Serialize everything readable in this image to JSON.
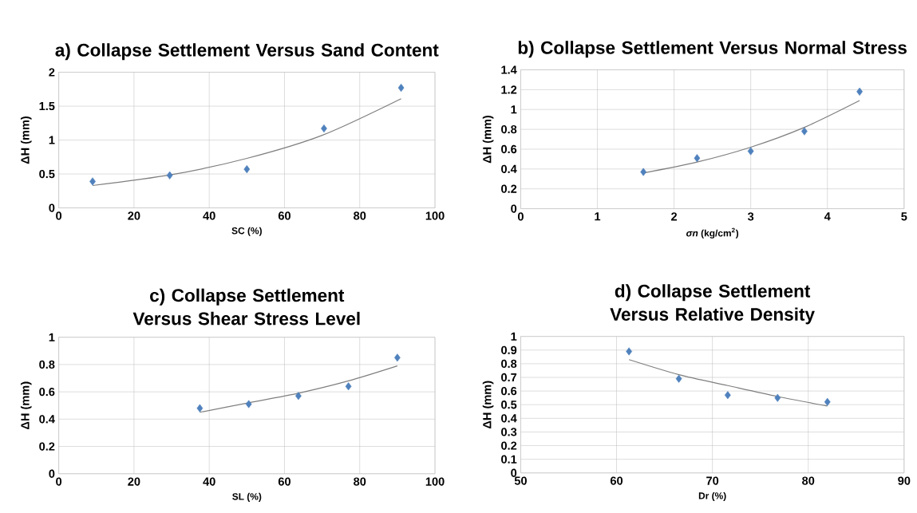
{
  "chart_data": [
    {
      "type": "scatter",
      "title": "a) Collapse Settlement Versus Sand Content",
      "xlabel": "SC (%)",
      "ylabel": "ΔH (mm)",
      "xlim": [
        0,
        100
      ],
      "xticks": [
        0,
        20,
        40,
        60,
        80,
        100
      ],
      "ylim": [
        0,
        2
      ],
      "yticks": [
        0,
        0.5,
        1,
        1.5,
        2
      ],
      "grid": true,
      "series": [
        {
          "color": "#4f81bd",
          "marker": "diamond",
          "x": [
            9,
            29.5,
            50,
            70.5,
            91
          ],
          "values": [
            0.39,
            0.48,
            0.57,
            1.17,
            1.77
          ]
        },
        {
          "type": "line",
          "color": "#7f7f7f",
          "marker": "none",
          "x": [
            9,
            30,
            50,
            70,
            91
          ],
          "values": [
            0.33,
            0.49,
            0.73,
            1.07,
            1.61
          ]
        }
      ]
    },
    {
      "type": "scatter",
      "title": "b) Collapse Settlement Versus Normal Stress",
      "xlabel": "*σn* (kg/cm$^{2}$)",
      "ylabel": "ΔH (mm)",
      "xlim": [
        0,
        5
      ],
      "xticks": [
        0,
        1,
        2,
        3,
        4,
        5
      ],
      "ylim": [
        0,
        1.4
      ],
      "yticks": [
        0,
        0.2,
        0.4,
        0.6,
        0.8,
        1,
        1.2,
        1.4
      ],
      "grid": true,
      "series": [
        {
          "color": "#4f81bd",
          "marker": "diamond",
          "x": [
            1.6,
            2.3,
            3.0,
            3.7,
            4.42
          ],
          "values": [
            0.37,
            0.51,
            0.58,
            0.78,
            1.18
          ]
        },
        {
          "type": "line",
          "color": "#7f7f7f",
          "marker": "none",
          "x": [
            1.6,
            2.3,
            3.0,
            3.7,
            4.42
          ],
          "values": [
            0.36,
            0.47,
            0.62,
            0.82,
            1.09
          ]
        }
      ]
    },
    {
      "type": "scatter",
      "title": "c) Collapse Settlement Versus Shear Stress Level",
      "xlabel": "SL (%)",
      "ylabel": "ΔH (mm)",
      "xlim": [
        0,
        100
      ],
      "xticks": [
        0,
        20,
        40,
        60,
        80,
        100
      ],
      "ylim": [
        0,
        1
      ],
      "yticks": [
        0,
        0.2,
        0.4,
        0.6,
        0.8,
        1
      ],
      "grid": true,
      "series": [
        {
          "color": "#4f81bd",
          "marker": "diamond",
          "x": [
            37.5,
            50.5,
            63.7,
            77,
            90
          ],
          "values": [
            0.48,
            0.51,
            0.57,
            0.64,
            0.85
          ]
        },
        {
          "type": "line",
          "color": "#7f7f7f",
          "marker": "none",
          "x": [
            37.5,
            50.5,
            63.7,
            77,
            90
          ],
          "values": [
            0.45,
            0.52,
            0.59,
            0.68,
            0.79
          ]
        }
      ]
    },
    {
      "type": "scatter",
      "title": "d) Collapse Settlement Versus Relative Density",
      "xlabel": "Dr (%)",
      "ylabel": "ΔH (mm)",
      "xlim": [
        50,
        90
      ],
      "xticks": [
        50,
        60,
        70,
        80,
        90
      ],
      "ylim": [
        0,
        1
      ],
      "yticks": [
        0,
        0.1,
        0.2,
        0.3,
        0.4,
        0.5,
        0.6,
        0.7,
        0.8,
        0.9,
        1
      ],
      "grid": true,
      "series": [
        {
          "color": "#4f81bd",
          "marker": "diamond",
          "x": [
            61.3,
            66.5,
            71.6,
            76.8,
            82
          ],
          "values": [
            0.89,
            0.69,
            0.57,
            0.55,
            0.52
          ]
        },
        {
          "type": "line",
          "color": "#7f7f7f",
          "marker": "none",
          "x": [
            61.3,
            66.5,
            71.6,
            76.8,
            82
          ],
          "values": [
            0.83,
            0.72,
            0.64,
            0.56,
            0.49
          ]
        }
      ]
    }
  ]
}
